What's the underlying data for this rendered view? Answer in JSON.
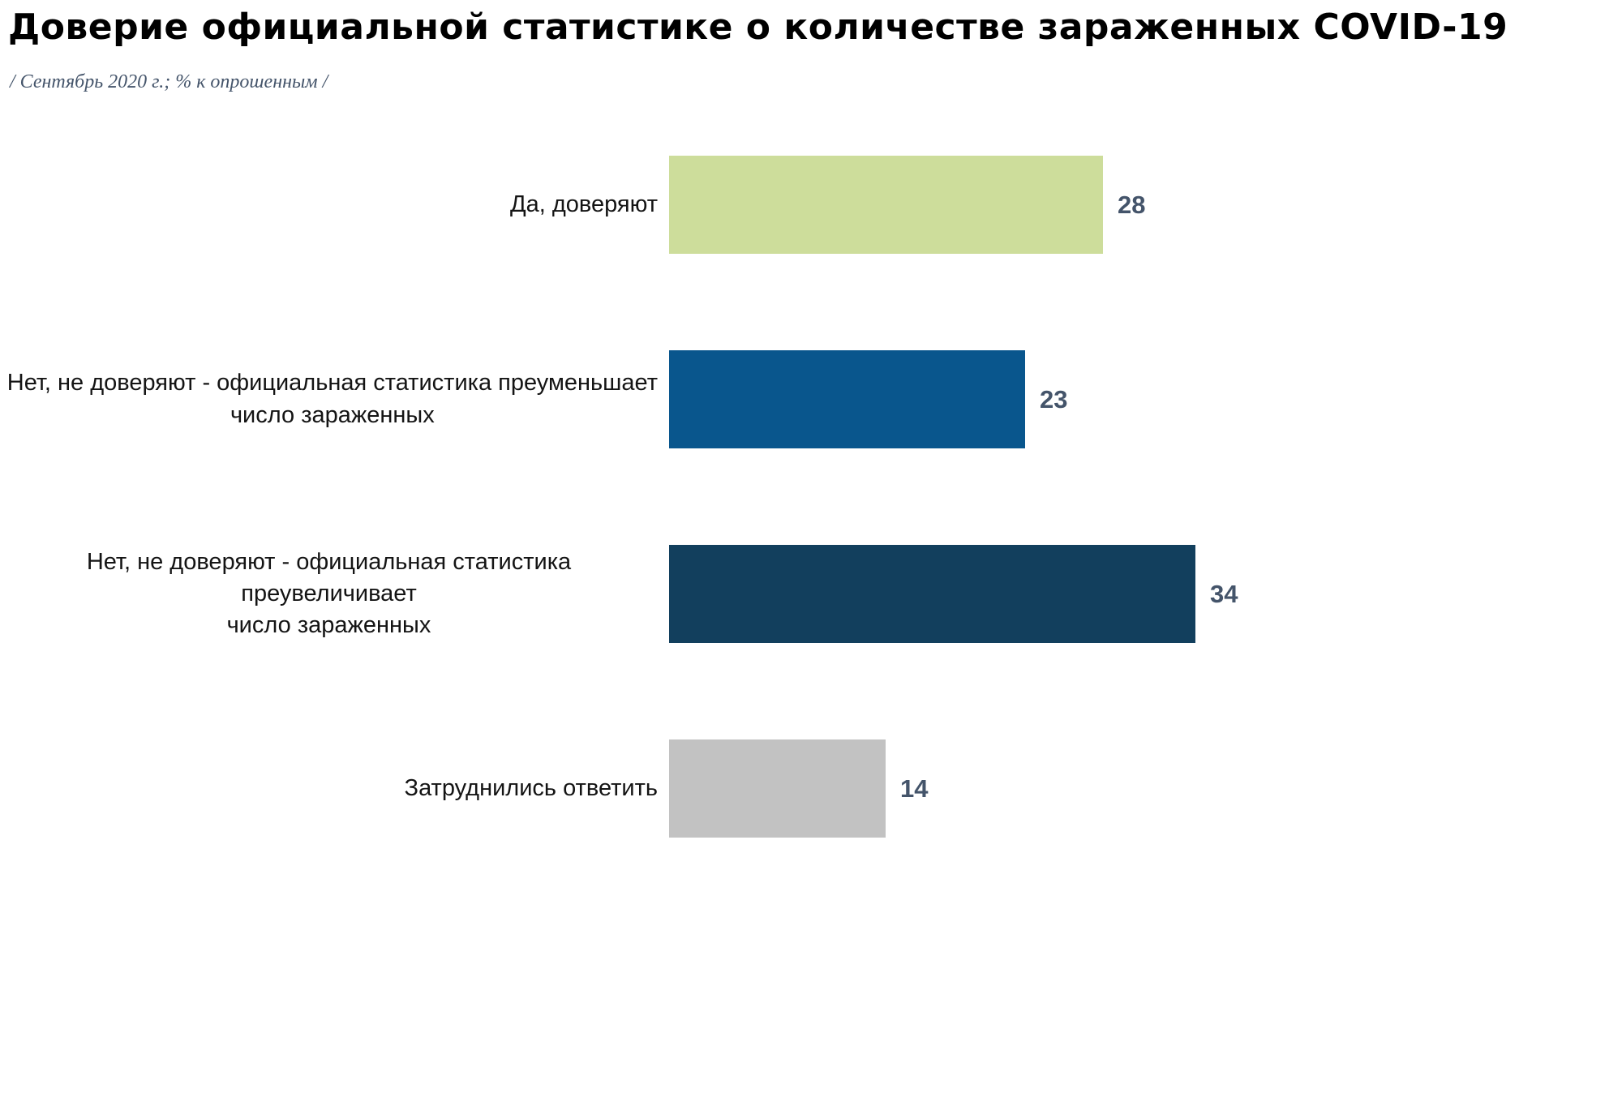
{
  "header": {
    "title": "Доверие официальной статистике о количестве зараженных COVID-19",
    "subtitle": "/ Сентябрь 2020 г.; % к опрошенным  /"
  },
  "chart_data": {
    "type": "bar",
    "orientation": "horizontal",
    "title": "Доверие официальной статистике о количестве зараженных COVID-19",
    "subtitle": "/ Сентябрь 2020 г.; % к опрошенным  /",
    "categories": [
      "Да, доверяют",
      "Нет, не доверяют - официальная статистика преуменьшает число зараженных",
      "Нет, не доверяют - официальная статистика преувеличивает число зараженных",
      "Затруднились ответить"
    ],
    "values": [
      28,
      23,
      34,
      14
    ],
    "colors": [
      "#cddd9b",
      "#09568d",
      "#123f5d",
      "#c2c2c2"
    ],
    "value_label_color": "#44546a",
    "xlim": [
      0,
      40
    ],
    "grid": false,
    "legend": "none",
    "labels_wrap": [
      [
        "Да, доверяют"
      ],
      [
        "Нет, не доверяют - официальная статистика преуменьшает",
        "число зараженных"
      ],
      [
        "Нет, не доверяют - официальная статистика преувеличивает",
        "число зараженных"
      ],
      [
        "Затруднились ответить"
      ]
    ]
  }
}
